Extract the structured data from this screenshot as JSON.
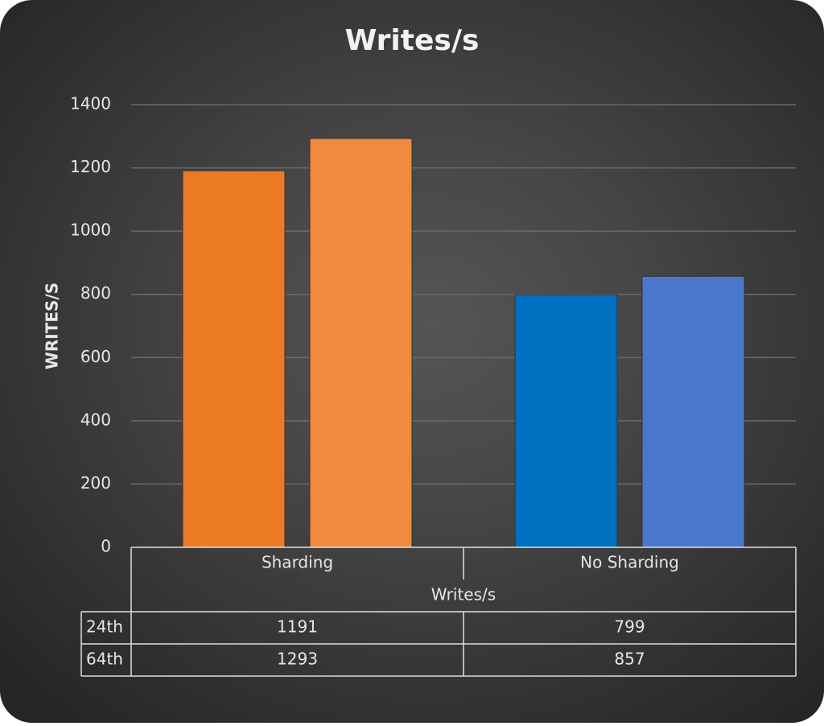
{
  "chart_data": {
    "type": "bar",
    "title": "Writes/s",
    "x_label": "Writes/s",
    "y_label": "WRITES/S",
    "categories": [
      "Sharding",
      "No Sharding"
    ],
    "series": [
      {
        "name": "24th",
        "colors": [
          "#ec7a25",
          "#0070c0"
        ],
        "values": [
          1191,
          799
        ]
      },
      {
        "name": "64th",
        "colors": [
          "#f08a3e",
          "#4a77cc"
        ],
        "values": [
          1293,
          857
        ]
      }
    ],
    "ylim": [
      0,
      1400
    ],
    "yticks": [
      0,
      200,
      400,
      600,
      800,
      1000,
      1200,
      1400
    ],
    "grid": true
  }
}
